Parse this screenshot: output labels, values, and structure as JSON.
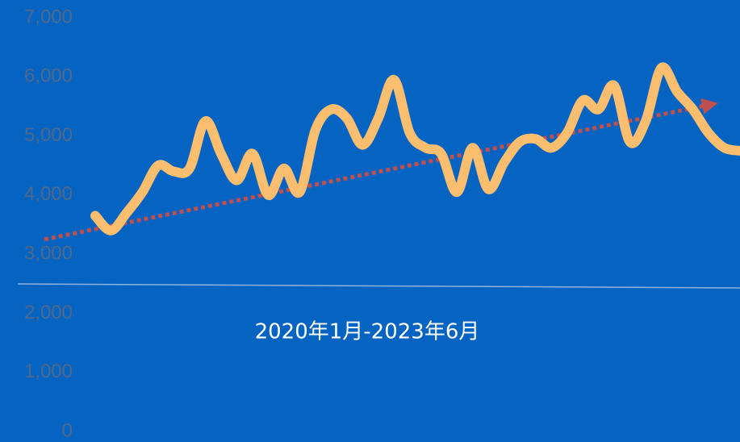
{
  "chart_data": {
    "type": "line",
    "subtitle": "2020年1月-2023年6月",
    "series": [
      {
        "color": "#fbbd6e",
        "values": [
          3650,
          3400,
          3700,
          4050,
          4500,
          4400,
          4450,
          5250,
          4700,
          4250,
          4700,
          4000,
          4450,
          4050,
          5100,
          5450,
          5300,
          4850,
          5300,
          5950,
          5050,
          4800,
          4700,
          4050,
          4800,
          4100,
          4550,
          4900,
          4950,
          4800,
          5050,
          5600,
          5450,
          5850,
          4900,
          5250,
          6150,
          5750,
          5450,
          5050,
          4800,
          4750
        ]
      }
    ],
    "trendline": {
      "start": 3250,
      "end": 5530,
      "color": "#c0504d"
    },
    "ylim": [
      0,
      7000
    ],
    "yticks": [
      {
        "value": 0,
        "label": "0"
      },
      {
        "value": 1000,
        "label": "1,000"
      },
      {
        "value": 2000,
        "label": "2,000"
      },
      {
        "value": 3000,
        "label": "3,000"
      },
      {
        "value": 4000,
        "label": "4,000"
      },
      {
        "value": 5000,
        "label": "5,000"
      },
      {
        "value": 6000,
        "label": "6,000"
      },
      {
        "value": 7000,
        "label": "7,000"
      }
    ]
  }
}
